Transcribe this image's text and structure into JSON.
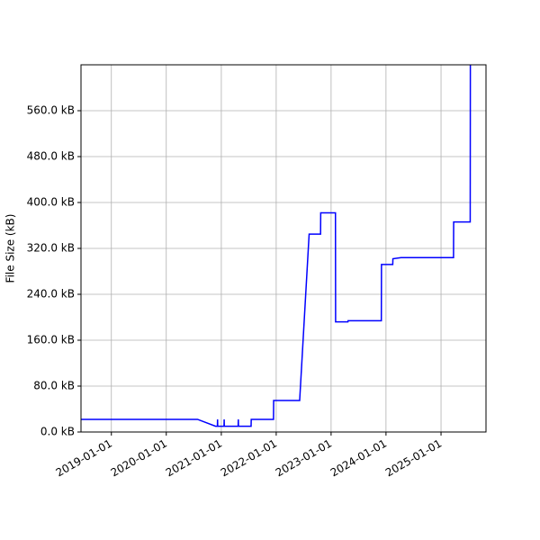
{
  "chart_data": {
    "type": "line",
    "ylabel": "File Size (kB)",
    "x": [
      "2018-06-13",
      "2020-07-27",
      "2020-11-24",
      "2020-12-06",
      "2020-12-07",
      "2020-12-08",
      "2021-01-19",
      "2021-01-20",
      "2021-01-21",
      "2021-04-23",
      "2021-04-24",
      "2021-04-25",
      "2021-07-18",
      "2021-07-19",
      "2021-12-14",
      "2021-12-15",
      "2022-06-06",
      "2022-08-08",
      "2022-10-23",
      "2022-10-24",
      "2023-01-30",
      "2023-01-31",
      "2023-04-23",
      "2023-04-24",
      "2023-12-01",
      "2023-12-02",
      "2024-02-15",
      "2024-02-16",
      "2024-04-10",
      "2025-03-25",
      "2025-03-26",
      "2025-07-14",
      "2025-07-15"
    ],
    "series": [
      {
        "name": "File Size",
        "color": "#0000ff",
        "values": [
          22,
          22,
          10,
          10,
          22,
          10,
          10,
          22,
          10,
          10,
          22,
          10,
          10,
          22,
          22,
          55,
          55,
          345,
          345,
          382,
          382,
          192,
          192,
          194,
          194,
          292,
          292,
          302,
          304,
          304,
          366,
          366,
          640
        ]
      }
    ],
    "xlim": [
      "2018-06-13",
      "2025-10-27"
    ],
    "xticks": [
      "2019-01-01",
      "2020-01-01",
      "2021-01-01",
      "2022-01-01",
      "2023-01-01",
      "2024-01-01",
      "2025-01-01"
    ],
    "ylim": [
      0,
      640
    ],
    "yticks": [
      {
        "value": 0,
        "label": "0.0 kB"
      },
      {
        "value": 80,
        "label": "80.0 kB"
      },
      {
        "value": 160,
        "label": "160.0 kB"
      },
      {
        "value": 240,
        "label": "240.0 kB"
      },
      {
        "value": 320,
        "label": "320.0 kB"
      },
      {
        "value": 400,
        "label": "400.0 kB"
      },
      {
        "value": 480,
        "label": "480.0 kB"
      },
      {
        "value": 560,
        "label": "560.0 kB"
      }
    ],
    "grid": true
  }
}
